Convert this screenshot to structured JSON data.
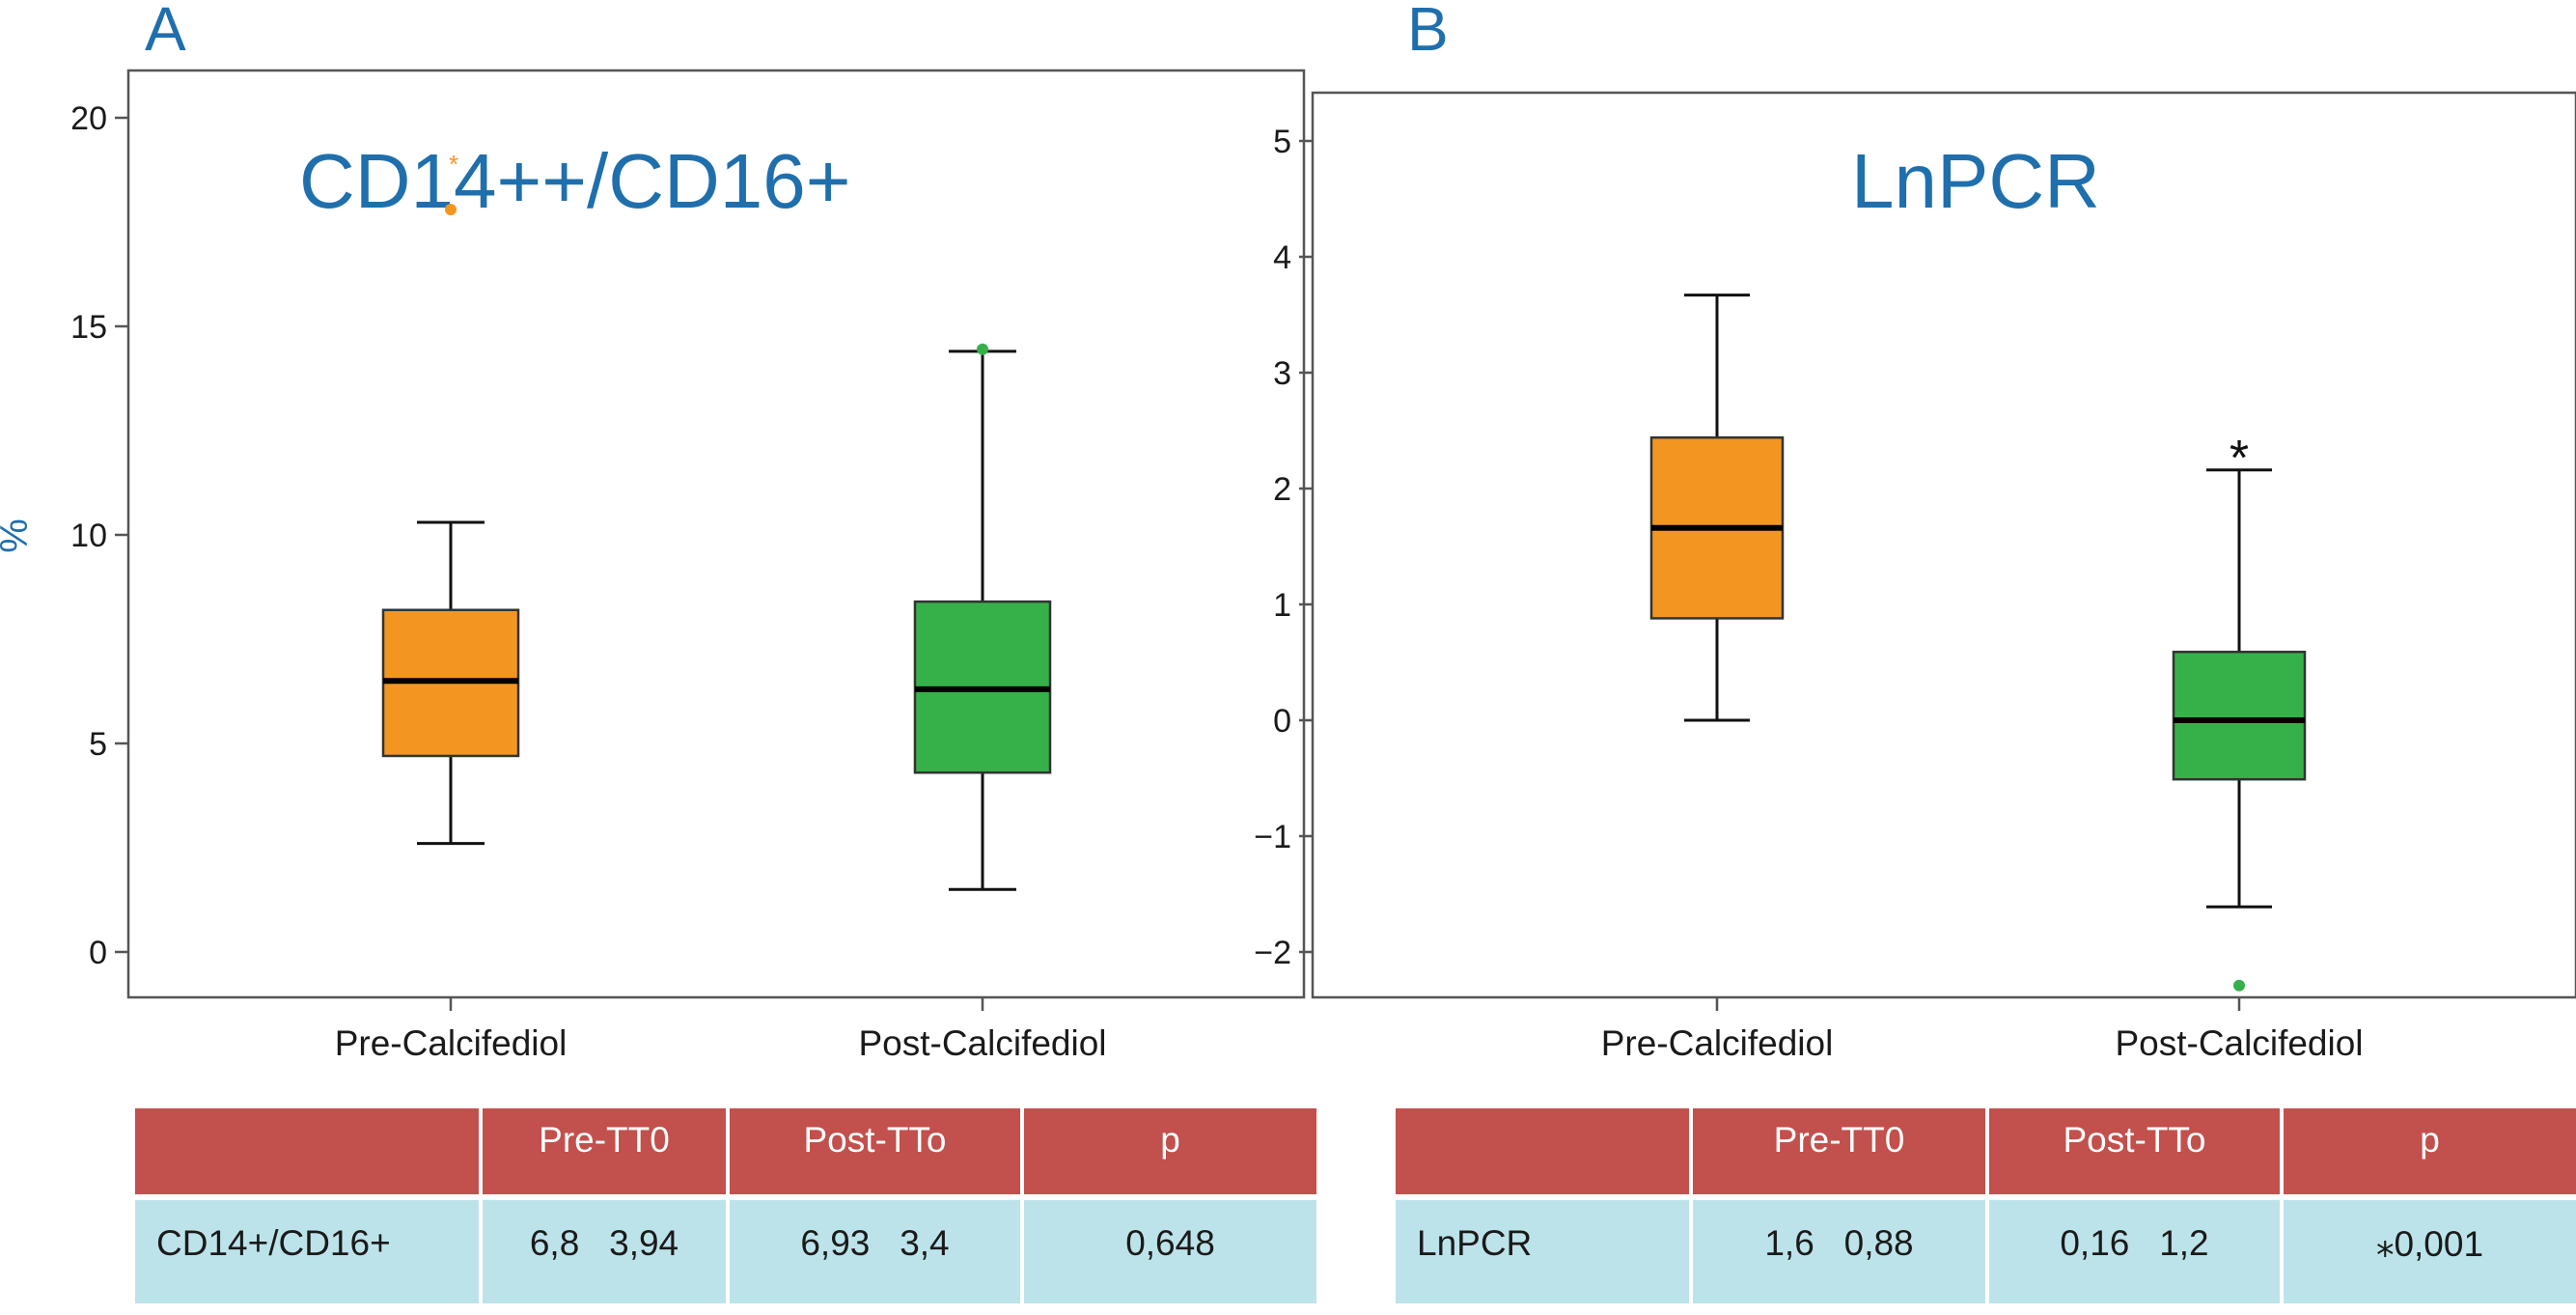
{
  "chart_data": [
    {
      "type": "boxplot",
      "panel_label": "A",
      "title": "CD14++/CD16+",
      "ylabel": "%",
      "ylim": [
        -1.1,
        21.3
      ],
      "yticks": [
        0,
        5,
        10,
        15,
        20
      ],
      "ytick_labels": [
        "0",
        "5",
        "10",
        "15",
        "20"
      ],
      "categories": [
        "Pre-Calcifediol",
        "Post-Calcifediol"
      ],
      "colors": [
        "#f39621",
        "#36b14a"
      ],
      "boxes": [
        {
          "category": "Pre-Calcifediol",
          "whisker_low": 2.6,
          "q1": 4.7,
          "median": 6.5,
          "q3": 8.2,
          "whisker_high": 10.3,
          "outliers": [
            {
              "value": 17.8,
              "marker": "*"
            }
          ]
        },
        {
          "category": "Post-Calcifediol",
          "whisker_low": 1.5,
          "q1": 4.3,
          "median": 6.3,
          "q3": 8.4,
          "whisker_high": 14.4,
          "outliers": [
            {
              "value": 14.45,
              "marker": ""
            }
          ]
        }
      ],
      "annotations": []
    },
    {
      "type": "boxplot",
      "panel_label": "B",
      "title": "LnPCR",
      "ylabel": "",
      "ylim": [
        -2.4,
        5.6
      ],
      "yticks": [
        -2,
        -1,
        0,
        1,
        2,
        3,
        4,
        5
      ],
      "ytick_labels": [
        "−2",
        "−1",
        "0",
        "1",
        "2",
        "3",
        "4",
        "5"
      ],
      "categories": [
        "Pre-Calcifediol",
        "Post-Calcifediol"
      ],
      "colors": [
        "#f39621",
        "#36b14a"
      ],
      "boxes": [
        {
          "category": "Pre-Calcifediol",
          "whisker_low": 0.0,
          "q1": 0.88,
          "median": 1.66,
          "q3": 2.44,
          "whisker_high": 3.67,
          "outliers": []
        },
        {
          "category": "Post-Calcifediol",
          "whisker_low": -1.61,
          "q1": -0.51,
          "median": 0.0,
          "q3": 0.59,
          "whisker_high": 2.16,
          "outliers": [
            {
              "value": -2.29,
              "marker": ""
            }
          ]
        }
      ],
      "annotations": [
        {
          "category": "Post-Calcifediol",
          "value": 2.3,
          "text": "*"
        }
      ]
    }
  ],
  "tables": [
    {
      "headers": [
        "",
        "Pre-TT0",
        "Post-TTo",
        "p"
      ],
      "row": [
        "CD14+/CD16+",
        "6,8   3,94",
        "6,93   3,4",
        "0,648"
      ]
    },
    {
      "headers": [
        "",
        "Pre-TT0",
        "Post-TTo",
        "p"
      ],
      "row": [
        "LnPCR",
        "1,6   0,88",
        "0,16   1,2",
        "⁎0,001"
      ]
    }
  ]
}
